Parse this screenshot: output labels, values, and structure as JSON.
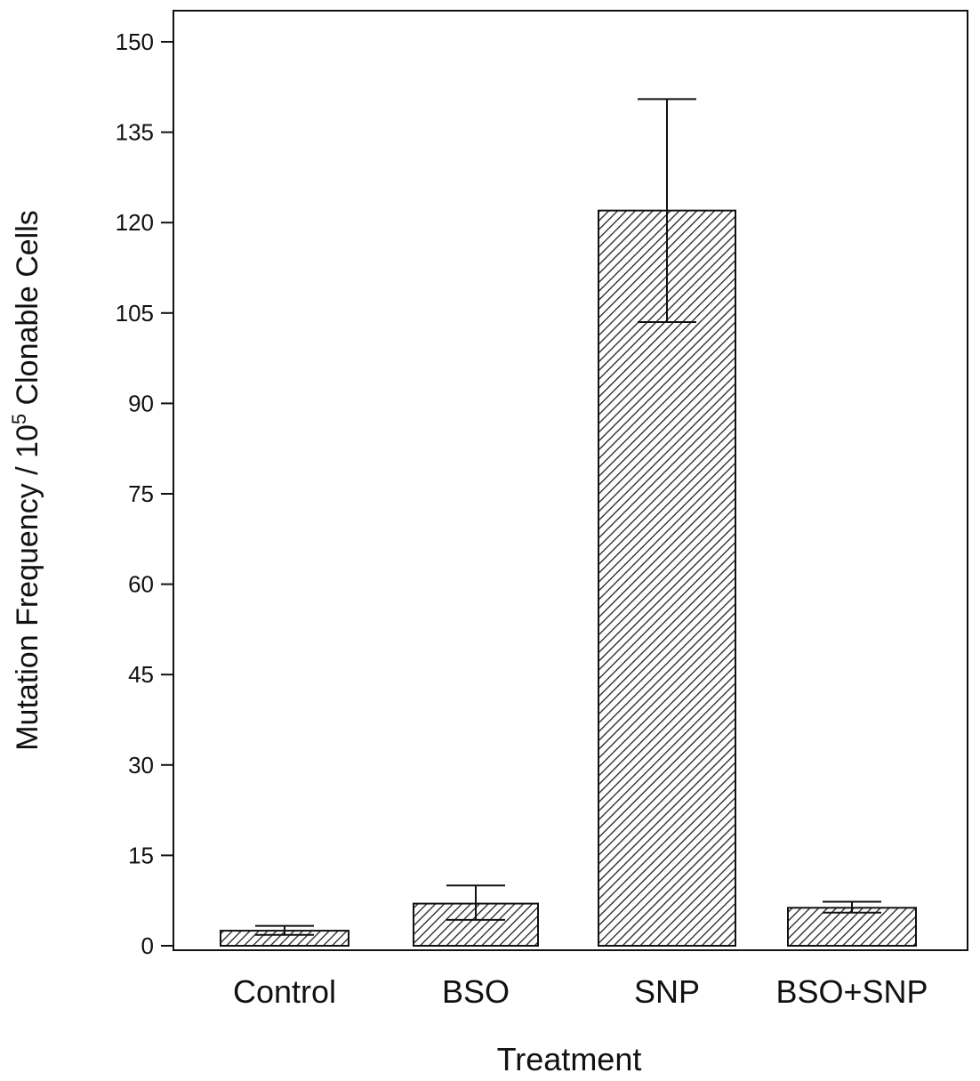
{
  "chart_data": {
    "type": "bar",
    "categories": [
      "Control",
      "BSO",
      "SNP",
      "BSO+SNP"
    ],
    "values": [
      2.5,
      7,
      122,
      6.3
    ],
    "error_upper": [
      3.3,
      10,
      140.5,
      7.3
    ],
    "error_lower": [
      1.8,
      4.3,
      103.5,
      5.5
    ],
    "xlabel": "Treatment",
    "ylabel_main": "Mutation Frequency / 10",
    "ylabel_sup": "5",
    "ylabel_tail": " Clonable Cells",
    "ylim": [
      0,
      150
    ],
    "yticks": [
      "0",
      "15",
      "30",
      "45",
      "60",
      "75",
      "90",
      "105",
      "120",
      "135",
      "150"
    ],
    "fill_pattern": "diagonal-hatch",
    "grid": false
  }
}
